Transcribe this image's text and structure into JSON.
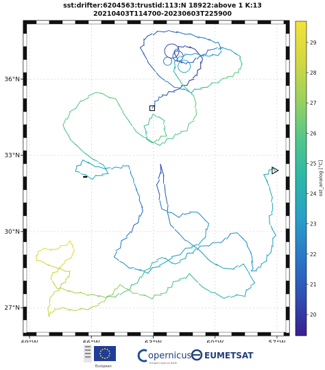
{
  "title": {
    "line1": "sst:drifter:6204563:trustid:113:N 18922:above 1 K:13",
    "line2": "20210403T114700-20230603T225900"
  },
  "map": {
    "lon_range": [
      -69.3,
      -56.4
    ],
    "lat_range": [
      25.9,
      38.3
    ],
    "lon_ticks": [
      {
        "value": -69,
        "label": "69°W"
      },
      {
        "value": -66,
        "label": "66°W"
      },
      {
        "value": -63,
        "label": "63°W"
      },
      {
        "value": -60,
        "label": "60°W"
      },
      {
        "value": -57,
        "label": "57°W"
      }
    ],
    "lat_ticks": [
      {
        "value": 27,
        "label": "27°N"
      },
      {
        "value": 30,
        "label": "30°N"
      },
      {
        "value": 33,
        "label": "33°N"
      },
      {
        "value": 36,
        "label": "36°N"
      }
    ],
    "gridlines": true,
    "start_marker": {
      "lon": -63.05,
      "lat": 34.85
    },
    "end_marker": {
      "lon": -57.1,
      "lat": 32.4
    }
  },
  "colorbar": {
    "label": "sst_analog [°C]",
    "min": 19.3,
    "max": 29.7,
    "ticks": [
      "20",
      "21",
      "22",
      "23",
      "24",
      "25",
      "26",
      "27",
      "28",
      "29"
    ],
    "colors": [
      "#3a1f8f",
      "#2f4fb5",
      "#2a78c8",
      "#2a9fc8",
      "#2ab8a8",
      "#52c78a",
      "#9ad25e",
      "#d4d83f",
      "#f2e33a"
    ]
  },
  "logos": {
    "eu_caption": "European",
    "copernicus": "opernicus",
    "copernicus_sub": "Europe's eyes on Earth",
    "eumetsat": "EUMETSAT"
  },
  "chart_data": {
    "type": "line",
    "series": [
      {
        "points": [
          [
            -63.05,
            34.85,
            22.0
          ],
          [
            -62.8,
            35.2,
            21.5
          ],
          [
            -62.4,
            35.4,
            20.8
          ],
          [
            -61.8,
            35.6,
            20.5
          ],
          [
            -61.2,
            35.9,
            20.2
          ],
          [
            -60.8,
            36.3,
            20.0
          ],
          [
            -60.6,
            36.8,
            20.1
          ],
          [
            -61.0,
            37.2,
            20.3
          ],
          [
            -61.6,
            37.3,
            20.4
          ],
          [
            -62.0,
            37.1,
            20.6
          ],
          [
            -61.8,
            36.7,
            20.8
          ],
          [
            -61.3,
            36.6,
            21.0
          ],
          [
            -60.7,
            36.9,
            21.5
          ],
          [
            -60.1,
            37.2,
            22.2
          ],
          [
            -59.4,
            37.2,
            23.0
          ],
          [
            -58.8,
            36.9,
            24.5
          ],
          [
            -58.7,
            36.5,
            25.8
          ],
          [
            -59.0,
            36.2,
            26.2
          ],
          [
            -59.6,
            36.0,
            26.0
          ],
          [
            -60.4,
            35.7,
            25.0
          ],
          [
            -61.2,
            35.5,
            23.5
          ],
          [
            -62.0,
            35.7,
            22.2
          ],
          [
            -62.7,
            36.1,
            21.5
          ],
          [
            -63.2,
            36.6,
            21.0
          ],
          [
            -63.6,
            37.2,
            20.9
          ],
          [
            -63.3,
            37.7,
            21.0
          ],
          [
            -62.5,
            37.9,
            21.3
          ],
          [
            -61.5,
            37.8,
            21.6
          ],
          [
            -60.5,
            37.6,
            22.0
          ],
          [
            -59.8,
            37.4,
            22.5
          ],
          [
            -59.7,
            37.0,
            23.0
          ],
          [
            -60.3,
            36.9,
            23.2
          ],
          [
            -61.2,
            37.0,
            23.4
          ],
          [
            -61.9,
            36.8,
            23.8
          ],
          [
            -62.0,
            36.3,
            24.5
          ],
          [
            -61.6,
            35.8,
            25.5
          ],
          [
            -61.0,
            35.3,
            26.0
          ],
          [
            -60.9,
            34.6,
            26.2
          ],
          [
            -61.4,
            34.0,
            26.0
          ],
          [
            -62.1,
            33.7,
            25.5
          ],
          [
            -62.7,
            33.4,
            25.2
          ],
          [
            -63.3,
            33.6,
            25.0
          ],
          [
            -63.4,
            34.1,
            25.3
          ],
          [
            -63.0,
            34.6,
            25.6
          ],
          [
            -62.5,
            34.4,
            25.8
          ],
          [
            -62.4,
            33.8,
            26.0
          ],
          [
            -63.0,
            33.5,
            25.8
          ],
          [
            -63.8,
            33.9,
            25.6
          ],
          [
            -64.4,
            34.6,
            25.8
          ],
          [
            -64.8,
            35.2,
            26.3
          ],
          [
            -65.8,
            35.5,
            26.0
          ],
          [
            -66.8,
            34.9,
            25.8
          ],
          [
            -67.4,
            34.2,
            26.0
          ],
          [
            -67.0,
            33.6,
            25.7
          ],
          [
            -66.2,
            33.0,
            25.0
          ],
          [
            -65.4,
            32.6,
            24.5
          ],
          [
            -65.2,
            32.3,
            24.2
          ],
          [
            -66.0,
            32.1,
            24.0
          ],
          [
            -66.8,
            32.4,
            23.8
          ],
          [
            -66.4,
            32.8,
            23.6
          ],
          [
            -65.6,
            32.5,
            23.5
          ],
          [
            -64.8,
            32.5,
            23.4
          ],
          [
            -64.2,
            32.6,
            23.2
          ],
          [
            -64.0,
            32.1,
            23.0
          ],
          [
            -63.7,
            31.4,
            22.5
          ],
          [
            -63.5,
            30.8,
            21.5
          ],
          [
            -63.9,
            30.2,
            21.5
          ],
          [
            -64.5,
            29.6,
            22.0
          ],
          [
            -64.9,
            29.0,
            22.5
          ],
          [
            -64.2,
            28.6,
            22.8
          ],
          [
            -63.3,
            28.4,
            23.0
          ],
          [
            -62.4,
            28.8,
            23.2
          ],
          [
            -61.4,
            29.3,
            23.4
          ],
          [
            -60.6,
            29.6,
            23.5
          ],
          [
            -60.3,
            30.3,
            23.2
          ],
          [
            -60.9,
            30.8,
            22.8
          ],
          [
            -61.8,
            30.6,
            22.5
          ],
          [
            -62.6,
            30.9,
            22.2
          ],
          [
            -62.8,
            31.8,
            21.0
          ],
          [
            -62.6,
            32.6,
            20.5
          ],
          [
            -62.4,
            31.5,
            21.2
          ],
          [
            -62.2,
            30.3,
            22.2
          ],
          [
            -61.5,
            29.7,
            22.8
          ],
          [
            -60.8,
            29.3,
            23.2
          ],
          [
            -60.2,
            28.8,
            23.6
          ],
          [
            -59.4,
            28.5,
            23.8
          ],
          [
            -58.6,
            28.7,
            23.9
          ],
          [
            -58.1,
            28.0,
            24.0
          ],
          [
            -58.6,
            27.5,
            24.2
          ],
          [
            -59.6,
            27.4,
            24.4
          ],
          [
            -60.6,
            27.8,
            24.8
          ],
          [
            -61.2,
            28.3,
            25.0
          ],
          [
            -62.0,
            28.0,
            25.5
          ],
          [
            -62.4,
            27.6,
            26.0
          ],
          [
            -63.1,
            27.4,
            26.4
          ],
          [
            -64.0,
            27.6,
            26.8
          ],
          [
            -64.6,
            27.9,
            27.0
          ],
          [
            -65.2,
            27.4,
            27.3
          ],
          [
            -65.9,
            27.0,
            27.6
          ],
          [
            -66.8,
            26.9,
            27.9
          ],
          [
            -67.6,
            27.0,
            28.1
          ],
          [
            -68.1,
            26.7,
            28.2
          ],
          [
            -68.0,
            27.4,
            28.0
          ],
          [
            -67.4,
            27.9,
            27.8
          ],
          [
            -67.0,
            28.4,
            27.8
          ],
          [
            -67.8,
            28.6,
            28.4
          ],
          [
            -68.7,
            28.9,
            28.6
          ],
          [
            -68.5,
            29.3,
            28.8
          ],
          [
            -67.7,
            29.3,
            29.0
          ],
          [
            -67.0,
            29.6,
            29.1
          ],
          [
            -66.8,
            29.2,
            28.9
          ],
          [
            -67.5,
            28.6,
            28.6
          ],
          [
            -68.0,
            28.2,
            28.3
          ],
          [
            -67.7,
            27.8,
            28.0
          ],
          [
            -66.8,
            27.6,
            27.5
          ],
          [
            -65.9,
            27.5,
            27.0
          ],
          [
            -65.1,
            27.4,
            26.4
          ],
          [
            -64.4,
            27.6,
            25.9
          ],
          [
            -63.8,
            28.0,
            25.3
          ],
          [
            -63.2,
            28.6,
            24.8
          ],
          [
            -62.6,
            29.0,
            24.2
          ],
          [
            -61.9,
            28.7,
            23.8
          ],
          [
            -61.3,
            29.1,
            23.4
          ],
          [
            -60.7,
            29.4,
            23.0
          ],
          [
            -59.7,
            29.6,
            22.8
          ],
          [
            -59.0,
            30.0,
            22.6
          ],
          [
            -58.5,
            29.6,
            22.7
          ],
          [
            -58.2,
            29.0,
            22.9
          ],
          [
            -58.2,
            28.4,
            23.0
          ],
          [
            -57.7,
            28.7,
            23.3
          ],
          [
            -57.3,
            29.2,
            23.5
          ],
          [
            -57.1,
            29.9,
            23.6
          ],
          [
            -57.4,
            30.4,
            23.7
          ],
          [
            -57.2,
            30.9,
            23.8
          ],
          [
            -57.3,
            31.6,
            23.9
          ],
          [
            -57.6,
            32.2,
            24.0
          ],
          [
            -57.2,
            32.5,
            24.1
          ],
          [
            -57.1,
            32.4,
            24.2
          ]
        ]
      }
    ]
  }
}
